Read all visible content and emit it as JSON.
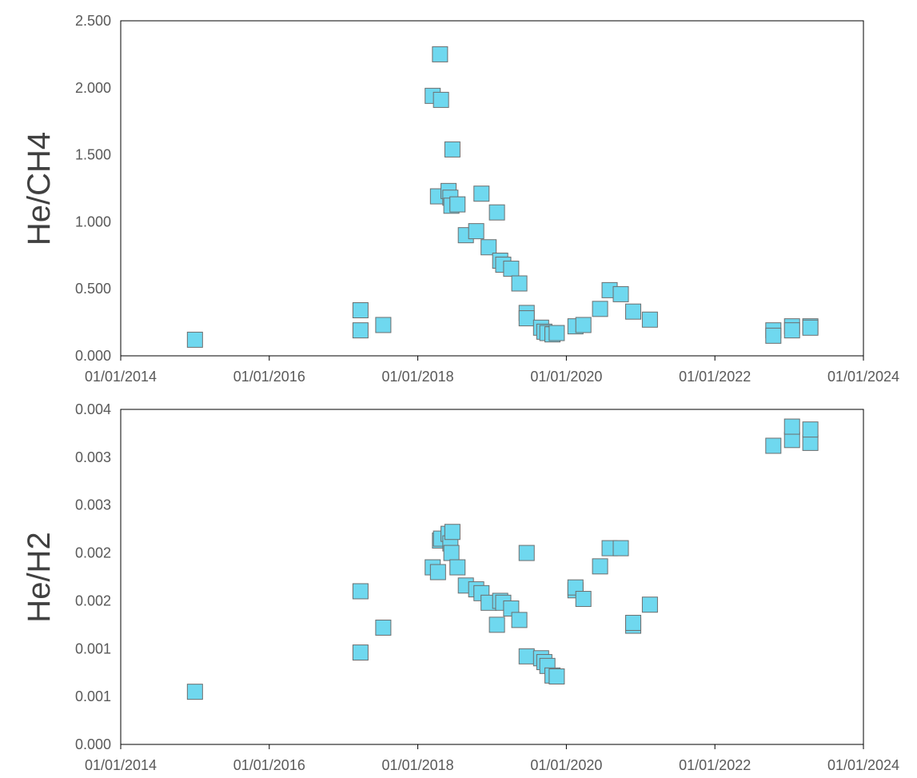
{
  "chart_data": [
    {
      "type": "scatter",
      "ylabel": "He/CH4",
      "xlabel": "",
      "title": "",
      "x_ticks": [
        "01/01/2014",
        "01/01/2016",
        "01/01/2018",
        "01/01/2020",
        "01/01/2022",
        "01/01/2024"
      ],
      "y_ticks": [
        "0.000",
        "0.500",
        "1.000",
        "1.500",
        "2.000",
        "2.500"
      ],
      "xlim": [
        "2014-01-01",
        "2024-01-01"
      ],
      "ylim": [
        0,
        2.5
      ],
      "grid": false,
      "marker_color": "#6fd8ef",
      "series": [
        {
          "x": [
            "2015-01-01",
            "2017-03-25",
            "2017-03-25",
            "2017-07-15",
            "2018-03-15",
            "2018-04-10",
            "2018-04-20",
            "2018-04-25",
            "2018-06-01",
            "2018-06-10",
            "2018-06-15",
            "2018-06-20",
            "2018-07-15",
            "2018-08-25",
            "2018-10-15",
            "2018-11-10",
            "2018-12-15",
            "2019-01-25",
            "2019-02-10",
            "2019-02-25",
            "2019-04-05",
            "2019-05-15",
            "2019-06-20",
            "2019-06-20",
            "2019-08-30",
            "2019-09-15",
            "2019-09-30",
            "2019-10-25",
            "2019-11-15",
            "2020-02-15",
            "2020-03-25",
            "2020-06-15",
            "2020-08-01",
            "2020-09-25",
            "2020-11-25",
            "2021-02-15",
            "2022-10-15",
            "2022-10-15",
            "2023-01-15",
            "2023-01-15",
            "2023-04-15",
            "2023-04-15"
          ],
          "y": [
            0.12,
            0.34,
            0.19,
            0.23,
            1.94,
            1.19,
            2.25,
            1.91,
            1.23,
            1.18,
            1.12,
            1.54,
            1.13,
            0.9,
            0.93,
            1.21,
            0.81,
            1.07,
            0.71,
            0.68,
            0.65,
            0.54,
            0.32,
            0.28,
            0.21,
            0.18,
            0.17,
            0.16,
            0.17,
            0.22,
            0.23,
            0.35,
            0.49,
            0.46,
            0.33,
            0.27,
            0.19,
            0.15,
            0.22,
            0.19,
            0.22,
            0.21
          ]
        }
      ]
    },
    {
      "type": "scatter",
      "ylabel": "He/H2",
      "xlabel": "",
      "title": "",
      "x_ticks": [
        "01/01/2014",
        "01/01/2016",
        "01/01/2018",
        "01/01/2020",
        "01/01/2022",
        "01/01/2024"
      ],
      "y_ticks": [
        "0.000",
        "0.001",
        "0.001",
        "0.002",
        "0.002",
        "0.003",
        "0.003",
        "0.004"
      ],
      "xlim": [
        "2014-01-01",
        "2024-01-01"
      ],
      "ylim": [
        0,
        0.0035
      ],
      "grid": false,
      "marker_color": "#6fd8ef",
      "series": [
        {
          "x": [
            "2015-01-01",
            "2017-03-25",
            "2017-03-25",
            "2017-07-15",
            "2018-03-15",
            "2018-04-10",
            "2018-04-20",
            "2018-04-25",
            "2018-06-01",
            "2018-06-10",
            "2018-06-15",
            "2018-06-20",
            "2018-07-15",
            "2018-08-25",
            "2018-10-15",
            "2018-11-10",
            "2018-12-15",
            "2019-01-25",
            "2019-02-10",
            "2019-02-25",
            "2019-04-05",
            "2019-05-15",
            "2019-06-20",
            "2019-06-20",
            "2019-08-30",
            "2019-09-15",
            "2019-09-30",
            "2019-10-25",
            "2019-11-15",
            "2020-02-15",
            "2020-02-15",
            "2020-03-25",
            "2020-06-15",
            "2020-08-01",
            "2020-09-25",
            "2020-11-25",
            "2020-11-25",
            "2021-02-15",
            "2022-10-15",
            "2023-01-15",
            "2023-01-15",
            "2023-04-15",
            "2023-04-15"
          ],
          "y": [
            0.00055,
            0.0016,
            0.00096,
            0.00122,
            0.00185,
            0.0018,
            0.00213,
            0.00215,
            0.0022,
            0.0021,
            0.002,
            0.00222,
            0.00185,
            0.00166,
            0.00162,
            0.00158,
            0.00148,
            0.00125,
            0.0015,
            0.00148,
            0.00142,
            0.0013,
            0.002,
            0.00092,
            0.0009,
            0.00086,
            0.00082,
            0.00072,
            0.00071,
            0.00161,
            0.00164,
            0.00152,
            0.00186,
            0.00205,
            0.00205,
            0.00124,
            0.00127,
            0.00146,
            0.00312,
            0.00318,
            0.00332,
            0.00315,
            0.00329
          ]
        }
      ]
    }
  ]
}
